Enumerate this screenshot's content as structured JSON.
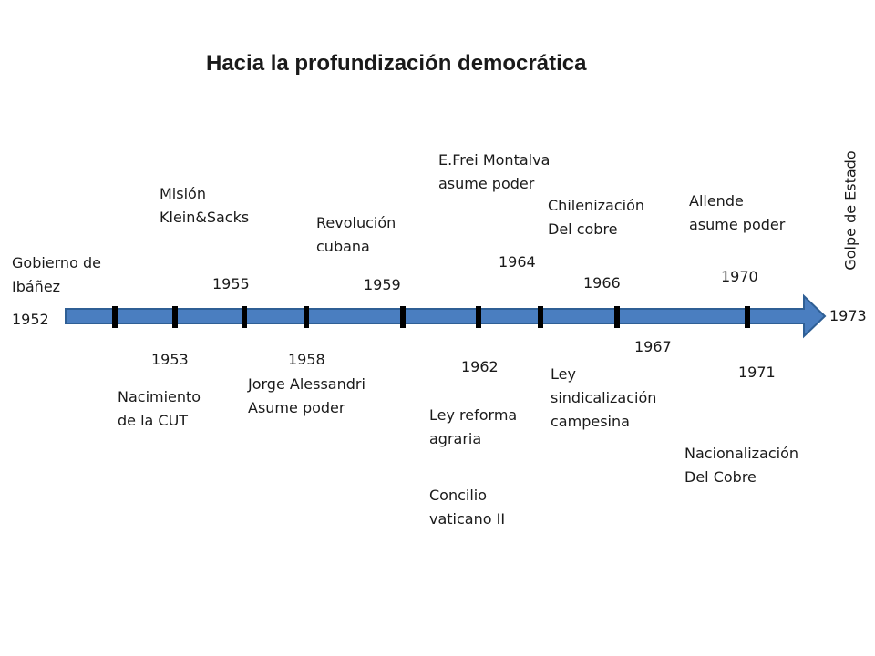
{
  "title": "Hacia la profundización democrática",
  "colors": {
    "arrow_fill": "#4a7ec0",
    "arrow_stroke": "#2f5f95",
    "tick": "#000000"
  },
  "events": {
    "e1952": {
      "line1": "Gobierno de",
      "line2": "Ibáñez",
      "year": "1952"
    },
    "e1953": {
      "line1": "Nacimiento",
      "line2": "de la  CUT",
      "year": "1953"
    },
    "e1955": {
      "line1": "Misión",
      "line2": "Klein&Sacks",
      "year": "1955"
    },
    "e1958": {
      "line1": "Jorge Alessandri",
      "line2": "Asume poder",
      "year": "1958"
    },
    "e1959": {
      "line1": "Revolución",
      "line2": "cubana",
      "year": "1959"
    },
    "e1962": {
      "line1": "Ley reforma",
      "line2": "agraria",
      "line3": "Concilio",
      "line4": "vaticano II",
      "year": "1962"
    },
    "e1964": {
      "line1": "E.Frei Montalva",
      "line2": "asume poder",
      "year": "1964"
    },
    "e1966": {
      "line1": "Chilenización",
      "line2": "Del cobre",
      "year": "1966"
    },
    "e1967": {
      "line1": "Ley",
      "line2": "sindicalización",
      "line3": "campesina",
      "year": "1967"
    },
    "e1970": {
      "line1": "Allende",
      "line2": "asume poder",
      "year": "1970"
    },
    "e1971": {
      "line1": "Nacionalización",
      "line2": "Del Cobre",
      "year": "1971"
    },
    "e1973": {
      "label": "Golpe de Estado",
      "year": "1973"
    }
  }
}
